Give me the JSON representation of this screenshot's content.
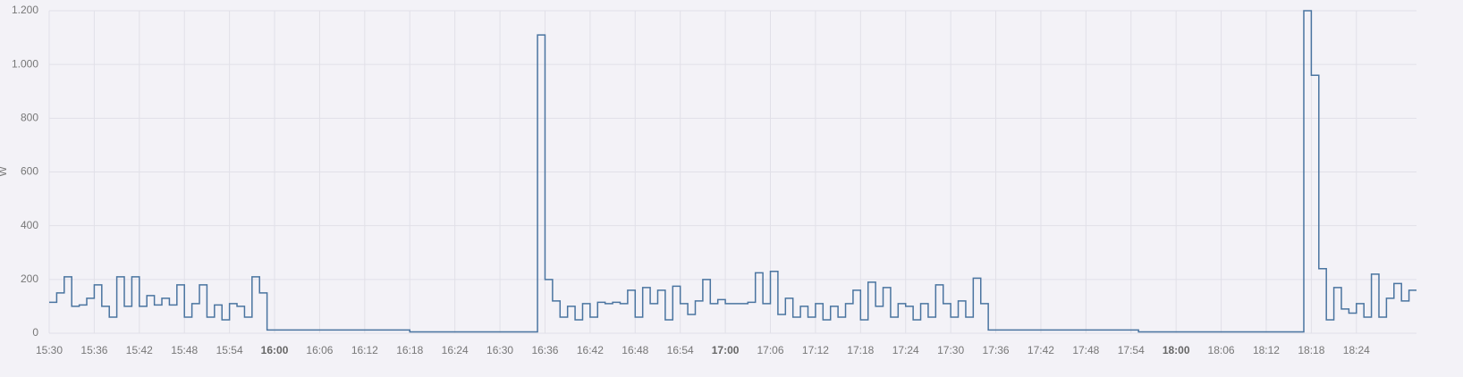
{
  "chart_data": {
    "type": "line",
    "step": true,
    "y_label": "W",
    "color": "#4a74a0",
    "grid": true,
    "ylim": [
      0,
      1200
    ],
    "yticks": [
      0,
      200,
      400,
      600,
      800,
      {
        "value": 1000,
        "label": "1.000"
      },
      {
        "value": 1200,
        "label": "1.200"
      }
    ],
    "xlim": [
      "15:30",
      "18:32"
    ],
    "xticks": [
      "15:30",
      "15:36",
      "15:42",
      "15:48",
      "15:54",
      "16:00",
      "16:06",
      "16:12",
      "16:18",
      "16:24",
      "16:30",
      "16:36",
      "16:42",
      "16:48",
      "16:54",
      "17:00",
      "17:06",
      "17:12",
      "17:18",
      "17:24",
      "17:30",
      "17:36",
      "17:42",
      "17:48",
      "17:54",
      "18:00",
      "18:06",
      "18:12",
      "18:18",
      "18:24"
    ],
    "x": [
      "15:30",
      "15:31",
      "15:32",
      "15:33",
      "15:34",
      "15:35",
      "15:36",
      "15:37",
      "15:38",
      "15:39",
      "15:40",
      "15:41",
      "15:42",
      "15:43",
      "15:44",
      "15:45",
      "15:46",
      "15:47",
      "15:48",
      "15:49",
      "15:50",
      "15:51",
      "15:52",
      "15:53",
      "15:54",
      "15:55",
      "15:56",
      "15:57",
      "15:58",
      "15:59",
      "16:00",
      "16:01",
      "16:02",
      "16:03",
      "16:04",
      "16:05",
      "16:06",
      "16:07",
      "16:08",
      "16:09",
      "16:10",
      "16:11",
      "16:12",
      "16:13",
      "16:14",
      "16:15",
      "16:16",
      "16:17",
      "16:18",
      "16:19",
      "16:20",
      "16:21",
      "16:22",
      "16:23",
      "16:24",
      "16:25",
      "16:26",
      "16:27",
      "16:28",
      "16:29",
      "16:30",
      "16:31",
      "16:32",
      "16:33",
      "16:34",
      "16:35",
      "16:36",
      "16:37",
      "16:38",
      "16:39",
      "16:40",
      "16:41",
      "16:42",
      "16:43",
      "16:44",
      "16:45",
      "16:46",
      "16:47",
      "16:48",
      "16:49",
      "16:50",
      "16:51",
      "16:52",
      "16:53",
      "16:54",
      "16:55",
      "16:56",
      "16:57",
      "16:58",
      "16:59",
      "17:00",
      "17:01",
      "17:02",
      "17:03",
      "17:04",
      "17:05",
      "17:06",
      "17:07",
      "17:08",
      "17:09",
      "17:10",
      "17:11",
      "17:12",
      "17:13",
      "17:14",
      "17:15",
      "17:16",
      "17:17",
      "17:18",
      "17:19",
      "17:20",
      "17:21",
      "17:22",
      "17:23",
      "17:24",
      "17:25",
      "17:26",
      "17:27",
      "17:28",
      "17:29",
      "17:30",
      "17:31",
      "17:32",
      "17:33",
      "17:34",
      "17:35",
      "17:36",
      "17:37",
      "17:38",
      "17:39",
      "17:40",
      "17:41",
      "17:42",
      "17:43",
      "17:44",
      "17:45",
      "17:46",
      "17:47",
      "17:48",
      "17:49",
      "17:50",
      "17:51",
      "17:52",
      "17:53",
      "17:54",
      "17:55",
      "17:56",
      "17:57",
      "17:58",
      "17:59",
      "18:00",
      "18:01",
      "18:02",
      "18:03",
      "18:04",
      "18:05",
      "18:06",
      "18:07",
      "18:08",
      "18:09",
      "18:10",
      "18:11",
      "18:12",
      "18:13",
      "18:14",
      "18:15",
      "18:16",
      "18:17",
      "18:18",
      "18:19",
      "18:20",
      "18:21",
      "18:22",
      "18:23",
      "18:24",
      "18:25",
      "18:26",
      "18:27",
      "18:28",
      "18:29",
      "18:30",
      "18:31"
    ],
    "values": [
      115,
      150,
      210,
      100,
      105,
      130,
      180,
      100,
      60,
      210,
      100,
      210,
      100,
      140,
      105,
      130,
      105,
      180,
      60,
      110,
      180,
      60,
      105,
      50,
      110,
      100,
      60,
      210,
      150,
      12,
      12,
      12,
      12,
      12,
      12,
      12,
      12,
      12,
      12,
      12,
      12,
      12,
      12,
      12,
      12,
      12,
      12,
      12,
      5,
      5,
      5,
      5,
      5,
      5,
      5,
      5,
      5,
      5,
      5,
      5,
      5,
      5,
      5,
      5,
      5,
      1110,
      200,
      120,
      60,
      100,
      50,
      110,
      60,
      115,
      110,
      115,
      110,
      160,
      60,
      170,
      110,
      160,
      50,
      175,
      110,
      70,
      120,
      200,
      110,
      125,
      110,
      110,
      110,
      115,
      225,
      110,
      230,
      70,
      130,
      60,
      100,
      60,
      110,
      50,
      100,
      60,
      110,
      160,
      50,
      190,
      100,
      170,
      60,
      110,
      100,
      50,
      110,
      60,
      180,
      110,
      60,
      120,
      60,
      205,
      110,
      12,
      12,
      12,
      12,
      12,
      12,
      12,
      12,
      12,
      12,
      12,
      12,
      12,
      12,
      12,
      12,
      12,
      12,
      12,
      12,
      5,
      5,
      5,
      5,
      5,
      5,
      5,
      5,
      5,
      5,
      5,
      5,
      5,
      5,
      5,
      5,
      5,
      5,
      5,
      5,
      5,
      5,
      1200,
      960,
      240,
      50,
      170,
      90,
      75,
      110,
      60,
      220,
      60,
      130,
      185,
      120,
      160
    ]
  }
}
